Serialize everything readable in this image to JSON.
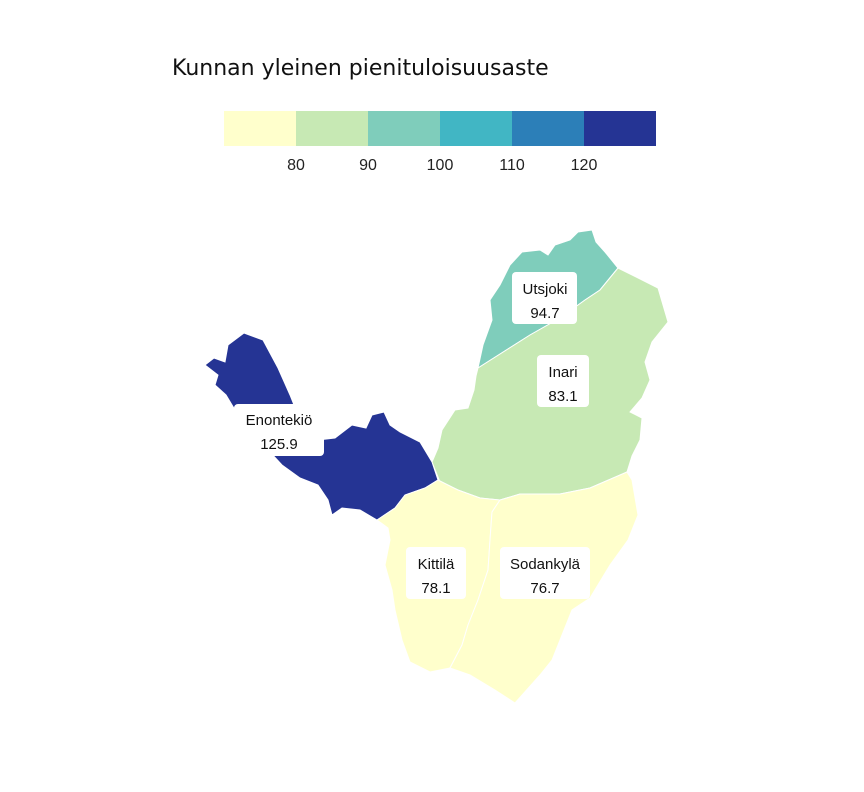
{
  "title": "Kunnan yleinen pienituloisuusaste",
  "legend": {
    "breaks": [
      80,
      90,
      100,
      110,
      120
    ],
    "tick_labels": [
      "80",
      "90",
      "100",
      "110",
      "120"
    ],
    "colors": [
      "#ffffcc",
      "#c7e9b4",
      "#7fcdbb",
      "#41b6c4",
      "#2c7fb8",
      "#253494"
    ]
  },
  "municipalities": [
    {
      "key": "utsjoki",
      "name": "Utsjoki",
      "value": 94.7,
      "value_label": "94.7",
      "color": "#7fcdbb"
    },
    {
      "key": "inari",
      "name": "Inari",
      "value": 83.1,
      "value_label": "83.1",
      "color": "#c7e9b4"
    },
    {
      "key": "enontekio",
      "name": "Enontekiö",
      "value": 125.9,
      "value_label": "125.9",
      "color": "#253494"
    },
    {
      "key": "kittila",
      "name": "Kittilä",
      "value": 78.1,
      "value_label": "78.1",
      "color": "#ffffcc"
    },
    {
      "key": "sodankyla",
      "name": "Sodankylä",
      "value": 76.7,
      "value_label": "76.7",
      "color": "#ffffcc"
    }
  ]
}
